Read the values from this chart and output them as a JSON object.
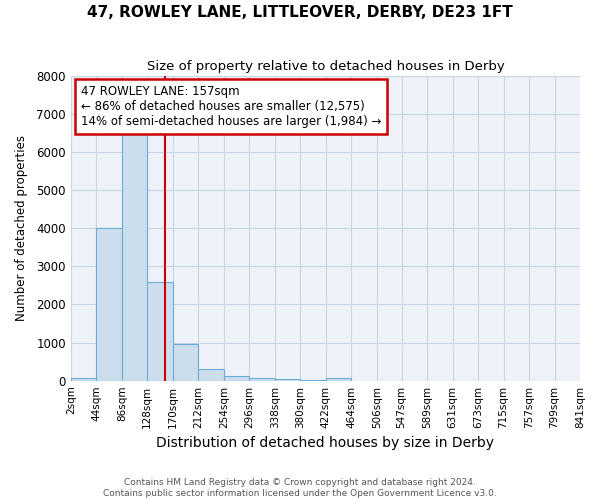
{
  "title": "47, ROWLEY LANE, LITTLEOVER, DERBY, DE23 1FT",
  "subtitle": "Size of property relative to detached houses in Derby",
  "xlabel": "Distribution of detached houses by size in Derby",
  "ylabel": "Number of detached properties",
  "footer_line1": "Contains HM Land Registry data © Crown copyright and database right 2024.",
  "footer_line2": "Contains public sector information licensed under the Open Government Licence v3.0.",
  "annotation_title": "47 ROWLEY LANE: 157sqm",
  "annotation_line2": "← 86% of detached houses are smaller (12,575)",
  "annotation_line3": "14% of semi-detached houses are larger (1,984) →",
  "property_size": 157,
  "bin_edges": [
    2,
    44,
    86,
    128,
    170,
    212,
    254,
    296,
    338,
    380,
    422,
    464,
    506,
    547,
    589,
    631,
    673,
    715,
    757,
    799,
    841
  ],
  "bar_heights": [
    80,
    4000,
    6600,
    2600,
    950,
    310,
    120,
    80,
    50,
    30,
    60,
    0,
    0,
    0,
    0,
    0,
    0,
    0,
    0,
    0
  ],
  "bar_color": "#ccdded",
  "bar_edge_color": "#6aaed6",
  "red_line_color": "#cc0000",
  "grid_color": "#c8d4e8",
  "background_color": "#ffffff",
  "plot_bg_color": "#eef2f8",
  "ylim": [
    0,
    8000
  ],
  "yticks": [
    0,
    1000,
    2000,
    3000,
    4000,
    5000,
    6000,
    7000,
    8000
  ]
}
